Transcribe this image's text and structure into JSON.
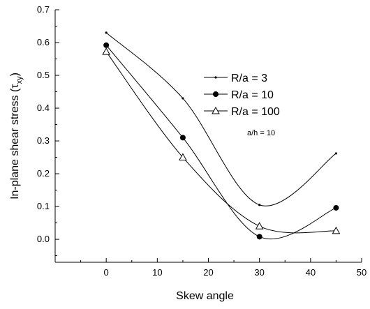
{
  "chart_data": {
    "type": "line",
    "title": "",
    "xlabel": "Skew angle",
    "ylabel": "In-plane shear stress (τ",
    "ylabel_subscript": "xy",
    "ylabel_close": ")",
    "xlim": [
      -10,
      50
    ],
    "ylim": [
      -0.07,
      0.7
    ],
    "xticks": [
      0,
      10,
      20,
      30,
      40,
      50
    ],
    "yticks": [
      0.0,
      0.1,
      0.2,
      0.3,
      0.4,
      0.5,
      0.6,
      0.7
    ],
    "xtick_labels": [
      "0",
      "10",
      "20",
      "30",
      "40",
      "50"
    ],
    "ytick_labels": [
      "0.0",
      "0.1",
      "0.2",
      "0.3",
      "0.4",
      "0.5",
      "0.6",
      "0.7"
    ],
    "x": [
      0,
      15,
      30,
      45
    ],
    "series": [
      {
        "name": "R/a = 3",
        "values": [
          0.63,
          0.43,
          0.105,
          0.262
        ],
        "marker": "small-dot",
        "color": "#000000"
      },
      {
        "name": "R/a = 10",
        "values": [
          0.592,
          0.31,
          0.008,
          0.096
        ],
        "marker": "filled-circle",
        "color": "#000000"
      },
      {
        "name": "R/a = 100",
        "values": [
          0.572,
          0.25,
          0.04,
          0.026
        ],
        "marker": "open-triangle",
        "color": "#000000"
      }
    ],
    "legend_position": "upper-right",
    "annotation": "a/h = 10",
    "grid": false
  }
}
